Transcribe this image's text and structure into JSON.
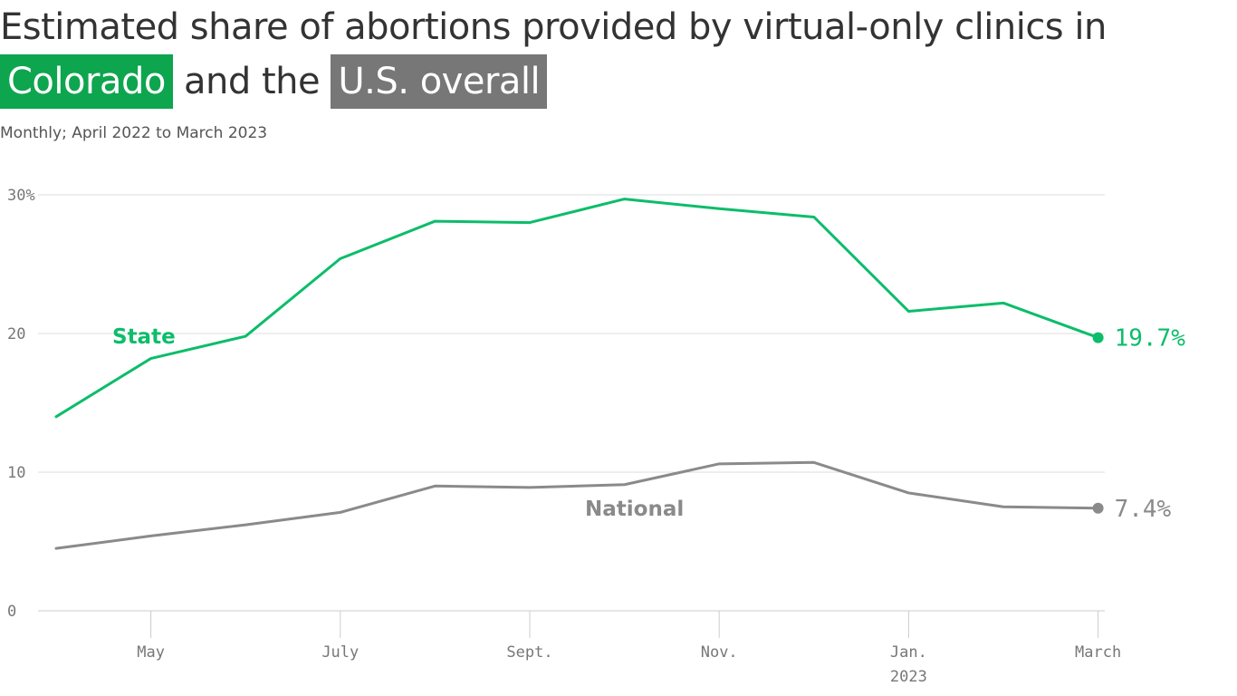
{
  "title": {
    "line1": "Estimated share of abortions provided by virtual-only clinics in",
    "highlight1": "Colorado",
    "connector": "and the",
    "highlight2": "U.S. overall"
  },
  "subtitle": "Monthly; April 2022 to March 2023",
  "colors": {
    "state": "#0cbd6a",
    "national": "#8a8a8a",
    "highlight1_bg": "#0ea54f",
    "highlight2_bg": "#777777",
    "grid": "#dddddd",
    "axis": "#cccccc"
  },
  "chart_data": {
    "type": "line",
    "x": [
      "2022-04",
      "2022-05",
      "2022-06",
      "2022-07",
      "2022-08",
      "2022-09",
      "2022-10",
      "2022-11",
      "2022-12",
      "2023-01",
      "2023-02",
      "2023-03"
    ],
    "x_tick_labels": [
      {
        "month": "2022-05",
        "label": "May"
      },
      {
        "month": "2022-07",
        "label": "July"
      },
      {
        "month": "2022-09",
        "label": "Sept."
      },
      {
        "month": "2022-11",
        "label": "Nov."
      },
      {
        "month": "2023-01",
        "label": "Jan.",
        "sublabel": "2023"
      },
      {
        "month": "2023-03",
        "label": "March"
      }
    ],
    "y_ticks": [
      {
        "value": 0,
        "label": "0"
      },
      {
        "value": 10,
        "label": "10"
      },
      {
        "value": 20,
        "label": "20"
      },
      {
        "value": 30,
        "label": "30%"
      }
    ],
    "ylim": [
      0,
      30
    ],
    "grid": true,
    "series": [
      {
        "name": "State",
        "key": "state",
        "values": [
          14.0,
          18.2,
          19.8,
          25.4,
          28.1,
          28.0,
          29.7,
          29.0,
          28.4,
          21.6,
          22.2,
          19.7
        ],
        "end_label": "19.7%"
      },
      {
        "name": "National",
        "key": "national",
        "values": [
          4.5,
          5.4,
          6.2,
          7.1,
          9.0,
          8.9,
          9.1,
          10.6,
          10.7,
          8.5,
          7.5,
          7.4
        ],
        "end_label": "7.4%"
      }
    ]
  }
}
